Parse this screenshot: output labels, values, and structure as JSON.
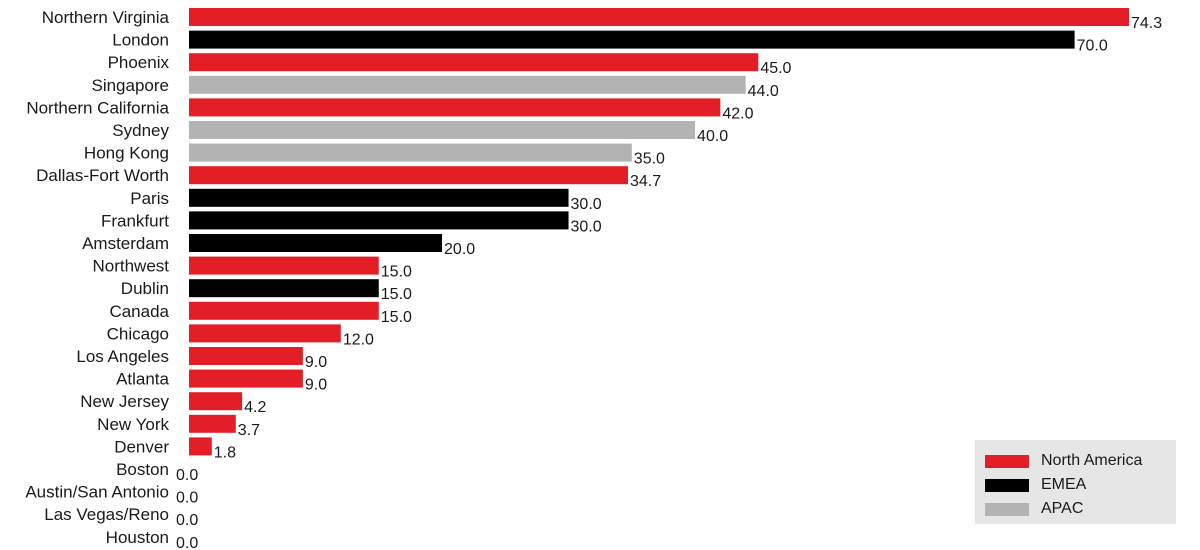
{
  "chart_data": {
    "type": "bar",
    "orientation": "horizontal",
    "categories": [
      "Northern Virginia",
      "London",
      "Phoenix",
      "Singapore",
      "Northern California",
      "Sydney",
      "Hong Kong",
      "Dallas-Fort Worth",
      "Paris",
      "Frankfurt",
      "Amsterdam",
      "Northwest",
      "Dublin",
      "Canada",
      "Chicago",
      "Los Angeles",
      "Atlanta",
      "New Jersey",
      "New York",
      "Denver",
      "Boston",
      "Austin/San Antonio",
      "Las Vegas/Reno",
      "Houston"
    ],
    "values": [
      74.3,
      70.0,
      45.0,
      44.0,
      42.0,
      40.0,
      35.0,
      34.7,
      30.0,
      30.0,
      20.0,
      15.0,
      15.0,
      15.0,
      12.0,
      9.0,
      9.0,
      4.2,
      3.7,
      1.8,
      0.0,
      0.0,
      0.0,
      0.0
    ],
    "value_labels": [
      "74.3",
      "70.0",
      "45.0",
      "44.0",
      "42.0",
      "40.0",
      "35.0",
      "34.7",
      "30.0",
      "30.0",
      "20.0",
      "15.0",
      "15.0",
      "15.0",
      "12.0",
      "9.0",
      "9.0",
      "4.2",
      "3.7",
      "1.8",
      "0.0",
      "0.0",
      "0.0",
      "0.0"
    ],
    "regions": [
      "North America",
      "EMEA",
      "North America",
      "APAC",
      "North America",
      "APAC",
      "APAC",
      "North America",
      "EMEA",
      "EMEA",
      "EMEA",
      "North America",
      "EMEA",
      "North America",
      "North America",
      "North America",
      "North America",
      "North America",
      "North America",
      "North America",
      "North America",
      "North America",
      "North America",
      "North America"
    ],
    "xlim": [
      0,
      75
    ],
    "grid": false,
    "title": "",
    "xlabel": "",
    "ylabel": "",
    "legend": {
      "placement": "bottom-right",
      "entries": [
        {
          "name": "North America",
          "color": "#e41e26"
        },
        {
          "name": "EMEA",
          "color": "#000000"
        },
        {
          "name": "APAC",
          "color": "#b3b3b3"
        }
      ]
    }
  }
}
